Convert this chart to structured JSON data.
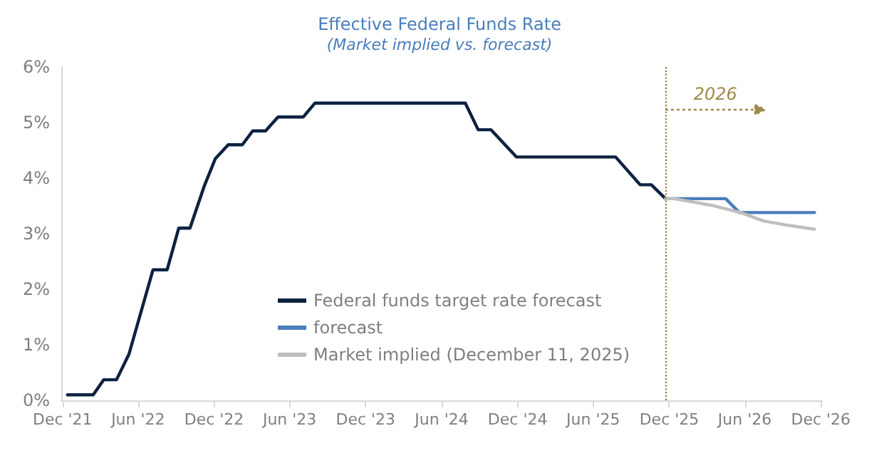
{
  "chart_data": {
    "type": "line",
    "title": "Effective Federal Funds Rate",
    "subtitle": "(Market implied vs. forecast)",
    "xlim": [
      "2021-11-28",
      "2026-12-04"
    ],
    "xticks": [
      {
        "value": "2021-12",
        "label": "Dec '21"
      },
      {
        "value": "2022-06",
        "label": "Jun '22"
      },
      {
        "value": "2022-12",
        "label": "Dec '22"
      },
      {
        "value": "2023-06",
        "label": "Jun '23"
      },
      {
        "value": "2023-12",
        "label": "Dec '23"
      },
      {
        "value": "2024-06",
        "label": "Jun '24"
      },
      {
        "value": "2024-12",
        "label": "Dec '24"
      },
      {
        "value": "2025-06",
        "label": "Jun '25"
      },
      {
        "value": "2025-12",
        "label": "Dec '25"
      },
      {
        "value": "2026-06",
        "label": "Jun '26"
      },
      {
        "value": "2026-12",
        "label": "Dec '26"
      }
    ],
    "ylim": [
      0,
      6
    ],
    "yticks": [
      {
        "value": 0,
        "label": "0%"
      },
      {
        "value": 1,
        "label": "1%"
      },
      {
        "value": 2,
        "label": "2%"
      },
      {
        "value": 3,
        "label": "3%"
      },
      {
        "value": 4,
        "label": "4%"
      },
      {
        "value": 5,
        "label": "5%"
      },
      {
        "value": 6,
        "label": "6%"
      }
    ],
    "grid": false,
    "legend": "bottom left",
    "marker": "none",
    "line_style": "solid",
    "series": [
      {
        "name": "Federal funds target rate forecast",
        "color": "#0d2240",
        "x": [
          "2021-12-13",
          "2022-02-13",
          "2022-03-10",
          "2022-04-10",
          "2022-05-10",
          "2022-07-07",
          "2022-08-10",
          "2022-09-07",
          "2022-10-04",
          "2022-11-07",
          "2022-12-04",
          "2023-01-04",
          "2023-02-07",
          "2023-03-04",
          "2023-04-04",
          "2023-05-04",
          "2023-07-04",
          "2023-08-01",
          "2024-07-28",
          "2024-08-28",
          "2024-09-28",
          "2024-11-28",
          "2025-07-25",
          "2025-09-22",
          "2025-10-19",
          "2025-11-22"
        ],
        "values": [
          0.1,
          0.1,
          0.37,
          0.37,
          0.83,
          2.35,
          2.35,
          3.1,
          3.1,
          3.85,
          4.35,
          4.6,
          4.6,
          4.85,
          4.85,
          5.1,
          5.1,
          5.35,
          5.35,
          4.87,
          4.87,
          4.38,
          4.38,
          3.88,
          3.88,
          3.63
        ]
      },
      {
        "name": "forecast",
        "color": "#4a7ebb",
        "x": [
          "2025-11-22",
          "2026-04-16",
          "2026-05-19",
          "2026-11-16"
        ],
        "values": [
          3.63,
          3.63,
          3.38,
          3.38
        ]
      },
      {
        "name": "Market implied (December 11, 2025)",
        "color": "#bfbfbf",
        "x": [
          "2025-11-22",
          "2025-12-13",
          "2026-03-13",
          "2026-05-22",
          "2026-07-16",
          "2026-09-13",
          "2026-11-16"
        ],
        "values": [
          3.63,
          3.63,
          3.51,
          3.38,
          3.23,
          3.15,
          3.08
        ]
      }
    ],
    "ref_lines": [
      {
        "axis": "x",
        "value": "2025-11-22",
        "color": "#a08a4a",
        "line_style": "dotted"
      }
    ],
    "annotations": [
      {
        "text": "2026",
        "x": "2025-11-22",
        "y": 5.24
      }
    ]
  }
}
